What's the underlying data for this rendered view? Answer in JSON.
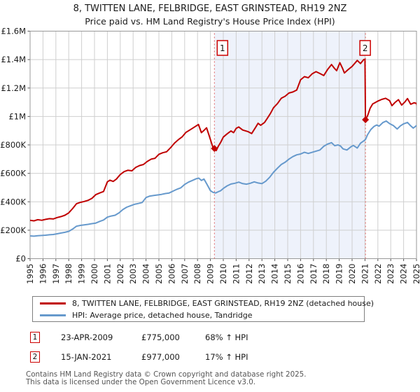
{
  "chart_data": {
    "type": "line",
    "title": "8, TWITTEN LANE, FELBRIDGE, EAST GRINSTEAD, RH19 2NZ",
    "subtitle": "Price paid vs. HM Land Registry's House Price Index (HPI)",
    "legend_position": "bottom",
    "grid": true,
    "x_axis": {
      "range": [
        1995,
        2025
      ],
      "ticks": [
        1995,
        1996,
        1997,
        1998,
        1999,
        2000,
        2001,
        2002,
        2003,
        2004,
        2005,
        2006,
        2007,
        2008,
        2009,
        2010,
        2011,
        2012,
        2013,
        2014,
        2015,
        2016,
        2017,
        2018,
        2019,
        2020,
        2021,
        2022,
        2023,
        2024,
        2025
      ]
    },
    "y_axis": {
      "range": [
        0,
        1600000
      ],
      "ticks": [
        {
          "label": "£0",
          "value": 0
        },
        {
          "label": "£200K",
          "value": 200000
        },
        {
          "label": "£400K",
          "value": 400000
        },
        {
          "label": "£600K",
          "value": 600000
        },
        {
          "label": "£800K",
          "value": 800000
        },
        {
          "label": "£1M",
          "value": 1000000
        },
        {
          "label": "£1.2M",
          "value": 1200000
        },
        {
          "label": "£1.4M",
          "value": 1400000
        },
        {
          "label": "£1.6M",
          "value": 1600000
        }
      ]
    },
    "shaded_span": {
      "from": 2009.31,
      "to": 2021.04,
      "color": "#eef2fb"
    },
    "markers": [
      {
        "label": "1",
        "x": 2009.31,
        "y": 775000
      },
      {
        "label": "2",
        "x": 2021.04,
        "y": 977000
      }
    ],
    "series": [
      {
        "name": "8, TWITTEN LANE, FELBRIDGE, EAST GRINSTEAD, RH19 2NZ (detached house)",
        "color": "#c00000",
        "points": [
          [
            1995.0,
            270000
          ],
          [
            1995.3,
            266000
          ],
          [
            1995.6,
            274000
          ],
          [
            1995.9,
            270000
          ],
          [
            1996.2,
            276000
          ],
          [
            1996.5,
            281000
          ],
          [
            1996.8,
            279000
          ],
          [
            1997.1,
            289000
          ],
          [
            1997.4,
            296000
          ],
          [
            1997.7,
            305000
          ],
          [
            1998.0,
            322000
          ],
          [
            1998.3,
            352000
          ],
          [
            1998.6,
            386000
          ],
          [
            1998.9,
            396000
          ],
          [
            1999.2,
            402000
          ],
          [
            1999.5,
            410000
          ],
          [
            1999.8,
            424000
          ],
          [
            2000.1,
            450000
          ],
          [
            2000.4,
            462000
          ],
          [
            2000.7,
            472000
          ],
          [
            2001.0,
            540000
          ],
          [
            2001.2,
            552000
          ],
          [
            2001.45,
            543000
          ],
          [
            2001.7,
            560000
          ],
          [
            2002.0,
            592000
          ],
          [
            2002.3,
            612000
          ],
          [
            2002.6,
            622000
          ],
          [
            2002.9,
            618000
          ],
          [
            2003.2,
            642000
          ],
          [
            2003.5,
            655000
          ],
          [
            2003.8,
            662000
          ],
          [
            2004.1,
            684000
          ],
          [
            2004.4,
            700000
          ],
          [
            2004.7,
            706000
          ],
          [
            2005.0,
            734000
          ],
          [
            2005.3,
            745000
          ],
          [
            2005.6,
            752000
          ],
          [
            2005.9,
            780000
          ],
          [
            2006.2,
            812000
          ],
          [
            2006.5,
            836000
          ],
          [
            2006.8,
            856000
          ],
          [
            2007.1,
            888000
          ],
          [
            2007.4,
            905000
          ],
          [
            2007.7,
            922000
          ],
          [
            2008.07,
            944000
          ],
          [
            2008.3,
            886000
          ],
          [
            2008.5,
            902000
          ],
          [
            2008.7,
            920000
          ],
          [
            2009.0,
            838000
          ],
          [
            2009.2,
            780000
          ],
          [
            2009.31,
            775000
          ],
          [
            2009.45,
            760000
          ],
          [
            2009.6,
            788000
          ],
          [
            2009.8,
            818000
          ],
          [
            2010.0,
            855000
          ],
          [
            2010.3,
            878000
          ],
          [
            2010.6,
            898000
          ],
          [
            2010.8,
            886000
          ],
          [
            2011.0,
            916000
          ],
          [
            2011.2,
            926000
          ],
          [
            2011.5,
            905000
          ],
          [
            2011.9,
            894000
          ],
          [
            2012.2,
            880000
          ],
          [
            2012.5,
            922000
          ],
          [
            2012.7,
            952000
          ],
          [
            2012.9,
            938000
          ],
          [
            2013.2,
            958000
          ],
          [
            2013.4,
            985000
          ],
          [
            2013.65,
            1020000
          ],
          [
            2013.9,
            1062000
          ],
          [
            2014.2,
            1090000
          ],
          [
            2014.5,
            1128000
          ],
          [
            2014.8,
            1142000
          ],
          [
            2015.1,
            1165000
          ],
          [
            2015.4,
            1172000
          ],
          [
            2015.7,
            1186000
          ],
          [
            2016.0,
            1258000
          ],
          [
            2016.3,
            1280000
          ],
          [
            2016.6,
            1272000
          ],
          [
            2016.9,
            1300000
          ],
          [
            2017.2,
            1315000
          ],
          [
            2017.5,
            1302000
          ],
          [
            2017.8,
            1288000
          ],
          [
            2018.1,
            1330000
          ],
          [
            2018.4,
            1365000
          ],
          [
            2018.6,
            1342000
          ],
          [
            2018.8,
            1322000
          ],
          [
            2019.05,
            1378000
          ],
          [
            2019.25,
            1340000
          ],
          [
            2019.4,
            1306000
          ],
          [
            2019.7,
            1330000
          ],
          [
            2020.0,
            1352000
          ],
          [
            2020.4,
            1394000
          ],
          [
            2020.65,
            1372000
          ],
          [
            2020.9,
            1400000
          ],
          [
            2021.0,
            1402000
          ],
          [
            2021.04,
            977000
          ],
          [
            2021.2,
            1005000
          ],
          [
            2021.4,
            1058000
          ],
          [
            2021.6,
            1088000
          ],
          [
            2021.8,
            1098000
          ],
          [
            2022.0,
            1108000
          ],
          [
            2022.3,
            1120000
          ],
          [
            2022.6,
            1128000
          ],
          [
            2022.9,
            1112000
          ],
          [
            2023.1,
            1076000
          ],
          [
            2023.35,
            1100000
          ],
          [
            2023.6,
            1118000
          ],
          [
            2023.85,
            1080000
          ],
          [
            2024.1,
            1102000
          ],
          [
            2024.3,
            1126000
          ],
          [
            2024.55,
            1086000
          ],
          [
            2024.8,
            1096000
          ],
          [
            2025.0,
            1092000
          ],
          [
            2025.1,
            1058000
          ]
        ]
      },
      {
        "name": "HPI: Average price, detached house, Tandridge",
        "color": "#6699cc",
        "points": [
          [
            1995.0,
            160000
          ],
          [
            1995.3,
            158000
          ],
          [
            1995.6,
            161000
          ],
          [
            1995.9,
            163000
          ],
          [
            1996.2,
            165000
          ],
          [
            1996.5,
            168000
          ],
          [
            1996.8,
            170000
          ],
          [
            1997.1,
            175000
          ],
          [
            1997.4,
            180000
          ],
          [
            1997.7,
            185000
          ],
          [
            1998.0,
            192000
          ],
          [
            1998.3,
            208000
          ],
          [
            1998.6,
            228000
          ],
          [
            1998.9,
            234000
          ],
          [
            1999.2,
            238000
          ],
          [
            1999.5,
            241000
          ],
          [
            1999.8,
            246000
          ],
          [
            2000.1,
            250000
          ],
          [
            2000.4,
            262000
          ],
          [
            2000.7,
            272000
          ],
          [
            2001.0,
            292000
          ],
          [
            2001.3,
            300000
          ],
          [
            2001.6,
            305000
          ],
          [
            2001.9,
            322000
          ],
          [
            2002.2,
            345000
          ],
          [
            2002.5,
            362000
          ],
          [
            2002.8,
            372000
          ],
          [
            2003.1,
            382000
          ],
          [
            2003.4,
            388000
          ],
          [
            2003.7,
            395000
          ],
          [
            2004.0,
            430000
          ],
          [
            2004.3,
            440000
          ],
          [
            2004.6,
            444000
          ],
          [
            2004.9,
            448000
          ],
          [
            2005.2,
            452000
          ],
          [
            2005.5,
            458000
          ],
          [
            2005.8,
            462000
          ],
          [
            2006.1,
            475000
          ],
          [
            2006.4,
            488000
          ],
          [
            2006.7,
            498000
          ],
          [
            2007.0,
            522000
          ],
          [
            2007.3,
            538000
          ],
          [
            2007.6,
            550000
          ],
          [
            2007.9,
            562000
          ],
          [
            2008.1,
            566000
          ],
          [
            2008.3,
            550000
          ],
          [
            2008.5,
            560000
          ],
          [
            2008.75,
            520000
          ],
          [
            2009.0,
            478000
          ],
          [
            2009.2,
            466000
          ],
          [
            2009.4,
            462000
          ],
          [
            2009.6,
            470000
          ],
          [
            2009.8,
            478000
          ],
          [
            2010.0,
            494000
          ],
          [
            2010.3,
            512000
          ],
          [
            2010.6,
            525000
          ],
          [
            2010.9,
            530000
          ],
          [
            2011.2,
            538000
          ],
          [
            2011.5,
            528000
          ],
          [
            2011.8,
            524000
          ],
          [
            2012.1,
            530000
          ],
          [
            2012.4,
            540000
          ],
          [
            2012.7,
            532000
          ],
          [
            2013.0,
            528000
          ],
          [
            2013.3,
            545000
          ],
          [
            2013.6,
            572000
          ],
          [
            2013.9,
            608000
          ],
          [
            2014.2,
            636000
          ],
          [
            2014.5,
            662000
          ],
          [
            2014.8,
            678000
          ],
          [
            2015.1,
            700000
          ],
          [
            2015.4,
            718000
          ],
          [
            2015.7,
            730000
          ],
          [
            2016.0,
            736000
          ],
          [
            2016.3,
            748000
          ],
          [
            2016.6,
            740000
          ],
          [
            2016.9,
            748000
          ],
          [
            2017.2,
            756000
          ],
          [
            2017.5,
            764000
          ],
          [
            2017.8,
            790000
          ],
          [
            2018.1,
            806000
          ],
          [
            2018.4,
            816000
          ],
          [
            2018.65,
            794000
          ],
          [
            2018.9,
            800000
          ],
          [
            2019.1,
            792000
          ],
          [
            2019.3,
            772000
          ],
          [
            2019.6,
            764000
          ],
          [
            2019.9,
            786000
          ],
          [
            2020.1,
            796000
          ],
          [
            2020.4,
            778000
          ],
          [
            2020.65,
            812000
          ],
          [
            2020.9,
            828000
          ],
          [
            2021.04,
            838000
          ],
          [
            2021.2,
            872000
          ],
          [
            2021.45,
            908000
          ],
          [
            2021.7,
            930000
          ],
          [
            2021.9,
            940000
          ],
          [
            2022.1,
            932000
          ],
          [
            2022.4,
            958000
          ],
          [
            2022.65,
            968000
          ],
          [
            2022.9,
            950000
          ],
          [
            2023.2,
            936000
          ],
          [
            2023.5,
            912000
          ],
          [
            2023.75,
            934000
          ],
          [
            2024.0,
            948000
          ],
          [
            2024.3,
            958000
          ],
          [
            2024.55,
            934000
          ],
          [
            2024.75,
            918000
          ],
          [
            2025.0,
            936000
          ],
          [
            2025.1,
            924000
          ]
        ]
      }
    ]
  },
  "annotations": [
    {
      "num": "1",
      "date": "23-APR-2009",
      "price": "£775,000",
      "vs_hpi": "68% ↑ HPI"
    },
    {
      "num": "2",
      "date": "15-JAN-2021",
      "price": "£977,000",
      "vs_hpi": "17% ↑ HPI"
    }
  ],
  "footer": {
    "line1": "Contains HM Land Registry data © Crown copyright and database right 2025.",
    "line2": "This data is licensed under the Open Government Licence v3.0."
  }
}
